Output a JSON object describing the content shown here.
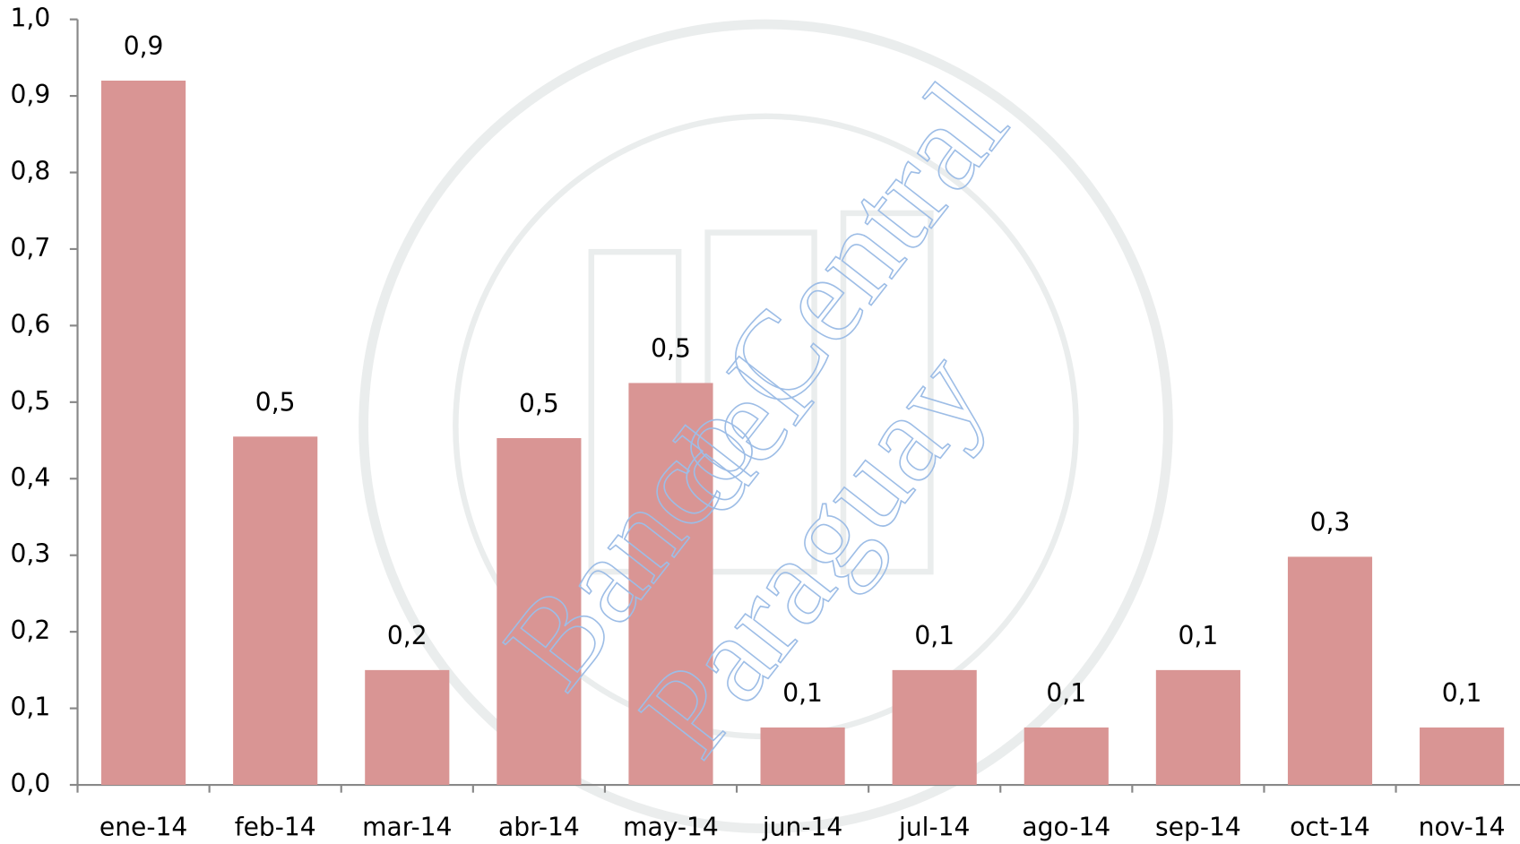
{
  "chart_data": {
    "type": "bar",
    "categories": [
      "ene-14",
      "feb-14",
      "mar-14",
      "abr-14",
      "may-14",
      "jun-14",
      "jul-14",
      "ago-14",
      "sep-14",
      "oct-14",
      "nov-14"
    ],
    "values": [
      0.92,
      0.455,
      0.15,
      0.453,
      0.525,
      0.075,
      0.15,
      0.075,
      0.15,
      0.298,
      0.075
    ],
    "value_labels": [
      "0,9",
      "0,5",
      "0,2",
      "0,5",
      "0,5",
      "0,1",
      "0,1",
      "0,1",
      "0,1",
      "0,3",
      "0,1"
    ],
    "color": "#d99594",
    "ylim": [
      0,
      1.0
    ],
    "yticks": [
      {
        "value": 0,
        "label": "0,0"
      },
      {
        "value": 0.1,
        "label": "0,1"
      },
      {
        "value": 0.2,
        "label": "0,2"
      },
      {
        "value": 0.3,
        "label": "0,3"
      },
      {
        "value": 0.4,
        "label": "0,4"
      },
      {
        "value": 0.5,
        "label": "0,5"
      },
      {
        "value": 0.6,
        "label": "0,6"
      },
      {
        "value": 0.7,
        "label": "0,7"
      },
      {
        "value": 0.8,
        "label": "0,8"
      },
      {
        "value": 0.9,
        "label": "0,9"
      },
      {
        "value": 1.0,
        "label": "1,0"
      }
    ],
    "grid": false,
    "watermark": [
      "Banco Central",
      "del",
      "Paraguay"
    ]
  }
}
